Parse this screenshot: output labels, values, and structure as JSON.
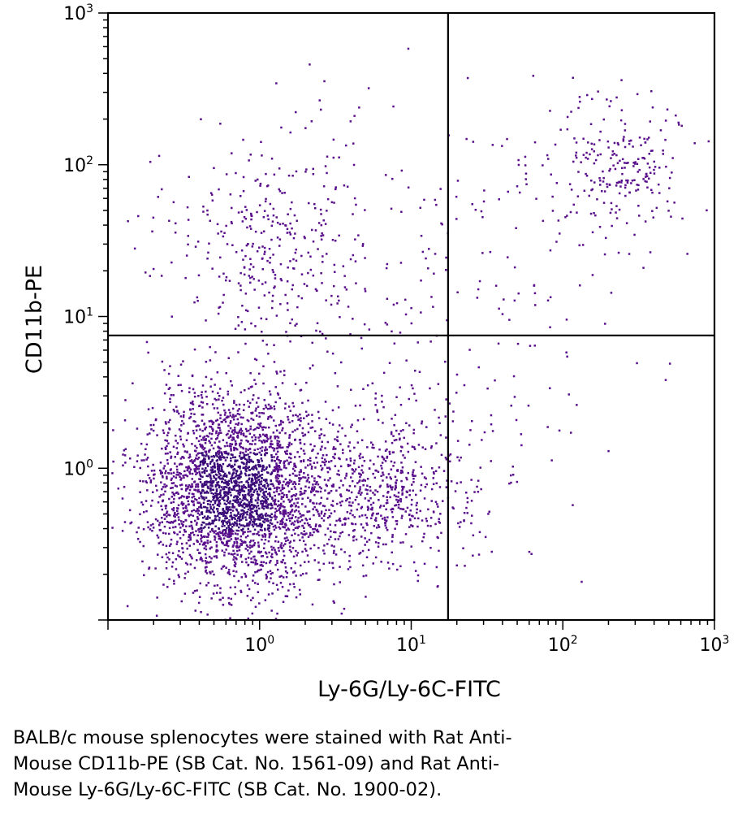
{
  "chart_data": {
    "type": "scatter",
    "title": "",
    "xlabel": "Ly-6G/Ly-6C-FITC",
    "ylabel": "CD11b-PE",
    "xscale": "log",
    "yscale": "log",
    "xlim": [
      0.1,
      1000
    ],
    "ylim": [
      0.1,
      1000
    ],
    "grid": false,
    "x_ticks": [
      {
        "base": "10",
        "exp": "0",
        "value": 1
      },
      {
        "base": "10",
        "exp": "1",
        "value": 10
      },
      {
        "base": "10",
        "exp": "2",
        "value": 100
      },
      {
        "base": "10",
        "exp": "3",
        "value": 1000
      }
    ],
    "y_ticks": [
      {
        "base": "10",
        "exp": "0",
        "value": 1
      },
      {
        "base": "10",
        "exp": "1",
        "value": 10
      },
      {
        "base": "10",
        "exp": "2",
        "value": 100
      },
      {
        "base": "10",
        "exp": "3",
        "value": 1000
      }
    ],
    "quadrant_gates": {
      "x": 17.5,
      "y": 7.5
    },
    "point_color": "#5a0f8c",
    "dense_color": "#3a0a78",
    "populations": [
      {
        "center": [
          0.7,
          0.7
        ],
        "spread": [
          0.3,
          0.32
        ],
        "count": 2800
      },
      {
        "center": [
          5.5,
          0.7
        ],
        "spread": [
          0.36,
          0.26
        ],
        "count": 700
      },
      {
        "center": [
          1.1,
          30
        ],
        "spread": [
          0.34,
          0.36
        ],
        "count": 330
      },
      {
        "center": [
          250,
          100
        ],
        "spread": [
          0.22,
          0.24
        ],
        "count": 220
      },
      {
        "center": [
          50,
          40
        ],
        "spread": [
          0.45,
          0.45
        ],
        "count": 90
      },
      {
        "center": [
          5,
          10
        ],
        "spread": [
          0.6,
          0.65
        ],
        "count": 140
      },
      {
        "center": [
          60,
          3
        ],
        "spread": [
          0.5,
          0.35
        ],
        "count": 35
      }
    ]
  },
  "caption": {
    "line1": "BALB/c mouse splenocytes were stained with Rat Anti-",
    "line2": "Mouse CD11b-PE (SB Cat. No. 1561-09) and Rat Anti-",
    "line3": "Mouse Ly-6G/Ly-6C-FITC (SB Cat. No. 1900-02)."
  }
}
